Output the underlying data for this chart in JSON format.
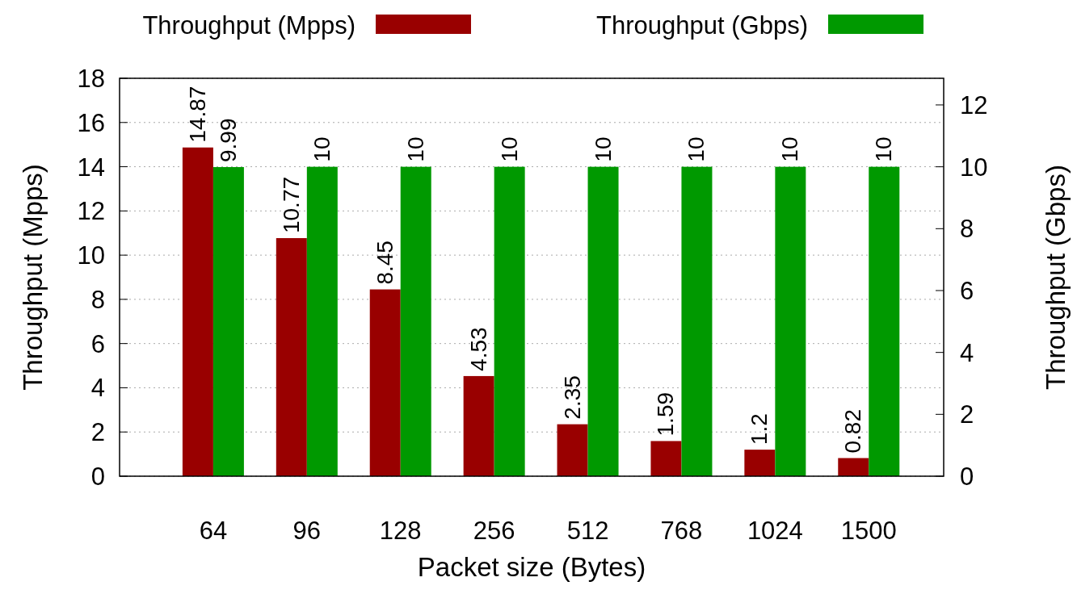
{
  "chart_data": {
    "type": "bar",
    "xlabel": "Packet size (Bytes)",
    "ylabel": "Throughput (Mpps)",
    "y2label": "Throughput (Gbps)",
    "categories": [
      "64",
      "96",
      "128",
      "256",
      "512",
      "768",
      "1024",
      "1500"
    ],
    "series": [
      {
        "name": "Throughput (Mpps)",
        "color": "#990000",
        "values": [
          14.87,
          10.77,
          8.45,
          4.53,
          2.35,
          1.59,
          1.2,
          0.82
        ]
      },
      {
        "name": "Throughput (Gbps)",
        "color": "#009900",
        "axis": "y2",
        "values": [
          9.99,
          10,
          10,
          10,
          10,
          10,
          10,
          10
        ]
      }
    ],
    "ylim": [
      0,
      18
    ],
    "yticks": [
      0,
      2,
      4,
      6,
      8,
      10,
      12,
      14,
      16,
      18
    ],
    "y2lim": [
      0,
      12.86
    ],
    "y2ticks": [
      0,
      2,
      4,
      6,
      8,
      10,
      12
    ],
    "grid": "y",
    "legend": "top",
    "data_labels": true
  }
}
